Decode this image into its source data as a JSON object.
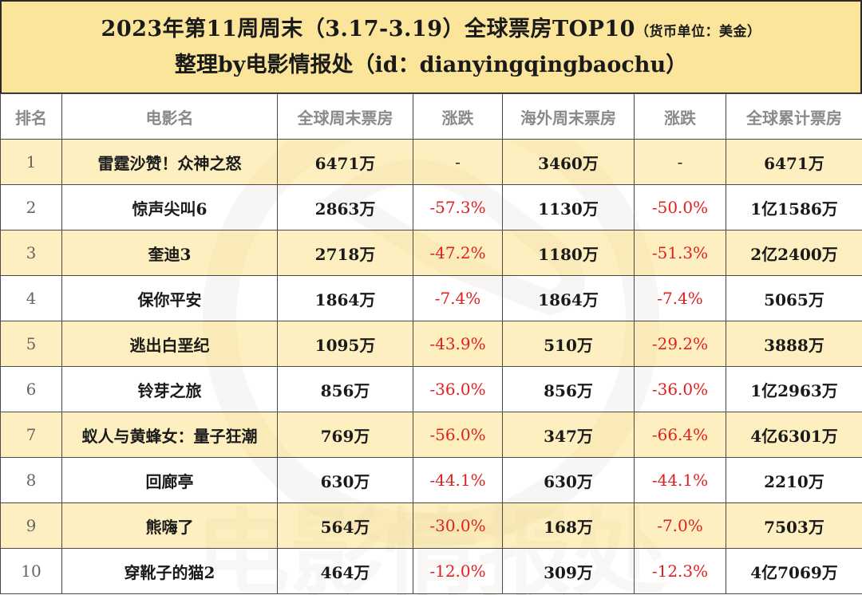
{
  "title": {
    "line1_main": "2023年第11周周末（3.17-3.19）全球票房TOP10",
    "line1_unit": "（货币单位：美金）",
    "line2": "整理by电影情报处（id：dianyingqingbaochu）"
  },
  "headers": [
    "排名",
    "电影名",
    "全球周末票房",
    "涨跌",
    "海外周末票房",
    "涨跌",
    "全球累计票房"
  ],
  "rows": [
    {
      "rank": "1",
      "movie": "雷霆沙赞！众神之怒",
      "global_weekend": "6471万",
      "global_change": "-",
      "overseas_weekend": "3460万",
      "overseas_change": "-",
      "global_total": "6471万"
    },
    {
      "rank": "2",
      "movie": "惊声尖叫6",
      "global_weekend": "2863万",
      "global_change": "-57.3%",
      "overseas_weekend": "1130万",
      "overseas_change": "-50.0%",
      "global_total": "1亿1586万"
    },
    {
      "rank": "3",
      "movie": "奎迪3",
      "global_weekend": "2718万",
      "global_change": "-47.2%",
      "overseas_weekend": "1180万",
      "overseas_change": "-51.3%",
      "global_total": "2亿2400万"
    },
    {
      "rank": "4",
      "movie": "保你平安",
      "global_weekend": "1864万",
      "global_change": "-7.4%",
      "overseas_weekend": "1864万",
      "overseas_change": "-7.4%",
      "global_total": "5065万"
    },
    {
      "rank": "5",
      "movie": "逃出白垩纪",
      "global_weekend": "1095万",
      "global_change": "-43.9%",
      "overseas_weekend": "510万",
      "overseas_change": "-29.2%",
      "global_total": "3888万"
    },
    {
      "rank": "6",
      "movie": "铃芽之旅",
      "global_weekend": "856万",
      "global_change": "-36.0%",
      "overseas_weekend": "856万",
      "overseas_change": "-36.0%",
      "global_total": "1亿2963万"
    },
    {
      "rank": "7",
      "movie": "蚁人与黄蜂女：量子狂潮",
      "global_weekend": "769万",
      "global_change": "-56.0%",
      "overseas_weekend": "347万",
      "overseas_change": "-66.4%",
      "global_total": "4亿6301万"
    },
    {
      "rank": "8",
      "movie": "回廊亭",
      "global_weekend": "630万",
      "global_change": "-44.1%",
      "overseas_weekend": "630万",
      "overseas_change": "-44.1%",
      "global_total": "2210万"
    },
    {
      "rank": "9",
      "movie": "熊嗨了",
      "global_weekend": "564万",
      "global_change": "-30.0%",
      "overseas_weekend": "168万",
      "overseas_change": "-7.0%",
      "global_total": "7503万"
    },
    {
      "rank": "10",
      "movie": "穿靴子的猫2",
      "global_weekend": "464万",
      "global_change": "-12.0%",
      "overseas_weekend": "309万",
      "overseas_change": "-12.3%",
      "global_total": "4亿7069万"
    }
  ],
  "watermark": {
    "text": "电影情报处"
  },
  "colors": {
    "title_bg": "#fae59a",
    "odd_row_bg": "#fcEaaa",
    "negative_change": "#e02020",
    "header_text": "#8a8a8a"
  }
}
